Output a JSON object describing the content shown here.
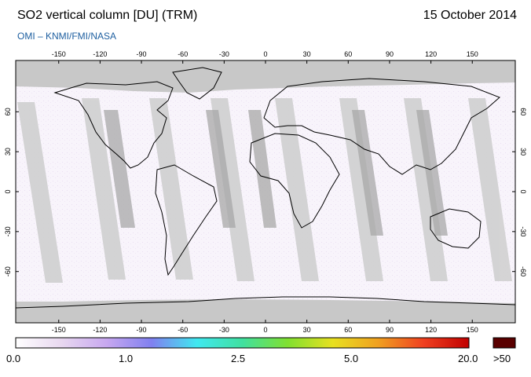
{
  "header": {
    "title": "SO2 vertical column [DU] (TRM)",
    "date": "15 October 2014",
    "credit": "OMI  –  KNMI/FMI/NASA"
  },
  "map": {
    "lon_ticks": [
      "-150",
      "-120",
      "-90",
      "-60",
      "-30",
      "0",
      "30",
      "60",
      "90",
      "120",
      "150"
    ],
    "lat_ticks": [
      "60",
      "30",
      "0",
      "-30",
      "-60"
    ],
    "colors": {
      "no_data": "#c8c8c8",
      "swath_gap": "#d6d6d6",
      "background_tint": "#f6f2fa",
      "coastline": "#000000"
    }
  },
  "colorbar": {
    "labels": [
      "0.0",
      "1.0",
      "2.5",
      "5.0",
      "20.0",
      ">50"
    ],
    "colors": [
      "#ffffff",
      "#e8d8f0",
      "#c8a8f0",
      "#8080f0",
      "#40e8f0",
      "#40e0a0",
      "#80e030",
      "#e8e020",
      "#f0a020",
      "#f04020",
      "#c00000"
    ],
    "overflow_color": "#5a0000"
  }
}
